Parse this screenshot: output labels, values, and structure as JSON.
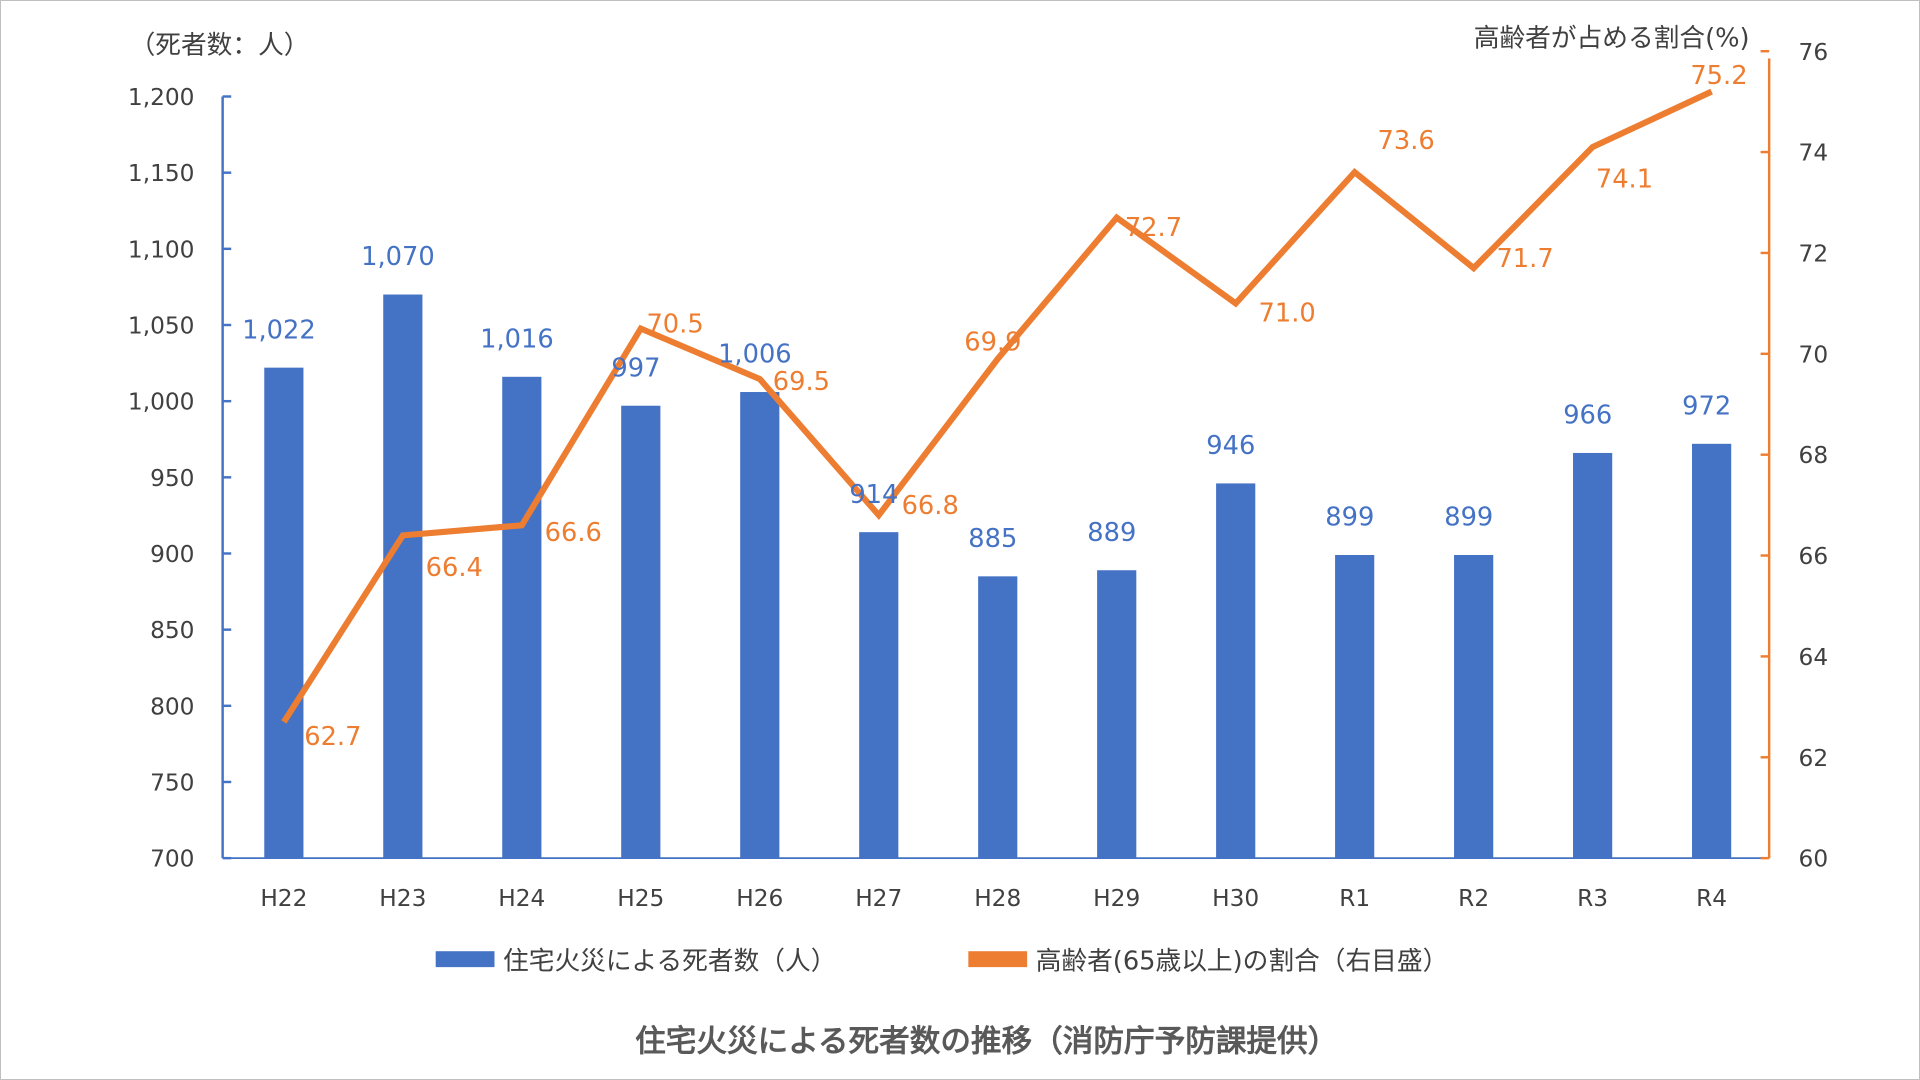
{
  "chart_data": {
    "type": "bar+line",
    "title": "住宅火災による死者数の推移（消防庁予防課提供）",
    "categories": [
      "H22",
      "H23",
      "H24",
      "H25",
      "H26",
      "H27",
      "H28",
      "H29",
      "H30",
      "R1",
      "R2",
      "R3",
      "R4"
    ],
    "series": [
      {
        "name": "住宅火災による死者数（人）",
        "type": "bar",
        "axis": "left",
        "color": "#4472c4",
        "values": [
          1022,
          1070,
          1016,
          997,
          1006,
          914,
          885,
          889,
          946,
          899,
          899,
          966,
          972
        ],
        "labels": [
          "1,022",
          "1,070",
          "1,016",
          "997",
          "1,006",
          "914",
          "885",
          "889",
          "946",
          "899",
          "899",
          "966",
          "972"
        ]
      },
      {
        "name": "高齢者(65歳以上)の割合（右目盛）",
        "type": "line",
        "axis": "right",
        "color": "#ed7d31",
        "values": [
          62.7,
          66.4,
          66.6,
          70.5,
          69.5,
          66.8,
          69.9,
          72.7,
          71.0,
          73.6,
          71.7,
          74.1,
          75.2
        ],
        "labels": [
          "62.7",
          "66.4",
          "66.6",
          "70.5",
          "69.5",
          "66.8",
          "69.9",
          "72.7",
          "71.0",
          "73.6",
          "71.7",
          "74.1",
          "75.2"
        ]
      }
    ],
    "left_axis": {
      "label": "（死者数：人）",
      "ylim": [
        700,
        1200
      ],
      "ticks": [
        "700",
        "750",
        "800",
        "850",
        "900",
        "950",
        "1,000",
        "1,050",
        "1,100",
        "1,150",
        "1,200"
      ]
    },
    "right_axis": {
      "label": "高齢者が占める割合(%)",
      "ylim": [
        60,
        76
      ],
      "ticks": [
        "60",
        "62",
        "64",
        "66",
        "68",
        "70",
        "72",
        "74",
        "76"
      ]
    },
    "legend_placement": "bottom",
    "grid": false
  }
}
